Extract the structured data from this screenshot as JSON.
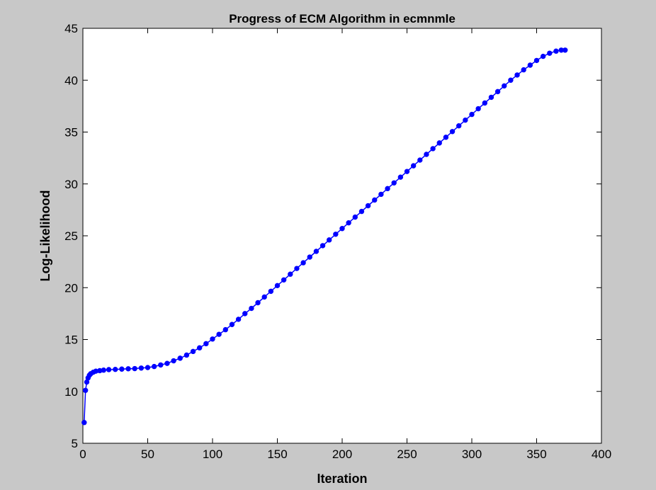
{
  "window": {
    "background": "#c8c8c8",
    "plot_background": "#ffffff"
  },
  "chart_data": {
    "type": "line",
    "title": "Progress of ECM Algorithm in ecmnmle",
    "xlabel": "Iteration",
    "ylabel": "Log-Likelihood",
    "xlim": [
      0,
      400
    ],
    "ylim": [
      5,
      45
    ],
    "xticks": [
      "0",
      "50",
      "100",
      "150",
      "200",
      "250",
      "300",
      "350",
      "400"
    ],
    "yticks": [
      "5",
      "10",
      "15",
      "20",
      "25",
      "30",
      "35",
      "40",
      "45"
    ],
    "grid": false,
    "legend": "none",
    "marker": "dot",
    "color": "#0000ff",
    "series": [
      {
        "x": [
          1,
          2,
          3,
          4,
          5,
          6,
          8,
          10,
          13,
          16,
          20,
          25,
          30,
          35,
          40,
          45,
          50,
          55,
          60,
          65,
          70,
          75,
          80,
          85,
          90,
          95,
          100,
          105,
          110,
          115,
          120,
          125,
          130,
          135,
          140,
          145,
          150,
          155,
          160,
          165,
          170,
          175,
          180,
          185,
          190,
          195,
          200,
          205,
          210,
          215,
          220,
          225,
          230,
          235,
          240,
          245,
          250,
          255,
          260,
          265,
          270,
          275,
          280,
          285,
          290,
          295,
          300,
          305,
          310,
          315,
          320,
          325,
          330,
          335,
          340,
          345,
          350,
          355,
          360,
          365,
          369,
          372
        ],
        "y": [
          7.0,
          10.1,
          10.9,
          11.3,
          11.55,
          11.7,
          11.85,
          11.95,
          12.0,
          12.05,
          12.1,
          12.12,
          12.15,
          12.18,
          12.2,
          12.25,
          12.3,
          12.4,
          12.55,
          12.7,
          12.95,
          13.2,
          13.5,
          13.85,
          14.2,
          14.6,
          15.05,
          15.5,
          15.95,
          16.45,
          16.95,
          17.5,
          18.0,
          18.55,
          19.1,
          19.65,
          20.2,
          20.75,
          21.3,
          21.85,
          22.4,
          22.95,
          23.5,
          24.05,
          24.6,
          25.15,
          25.7,
          26.25,
          26.8,
          27.35,
          27.9,
          28.45,
          29.0,
          29.55,
          30.1,
          30.65,
          31.2,
          31.75,
          32.3,
          32.85,
          33.4,
          33.95,
          34.5,
          35.05,
          35.6,
          36.15,
          36.7,
          37.25,
          37.8,
          38.35,
          38.9,
          39.45,
          40.0,
          40.5,
          41.0,
          41.45,
          41.9,
          42.3,
          42.6,
          42.8,
          42.9,
          42.9
        ]
      }
    ]
  }
}
